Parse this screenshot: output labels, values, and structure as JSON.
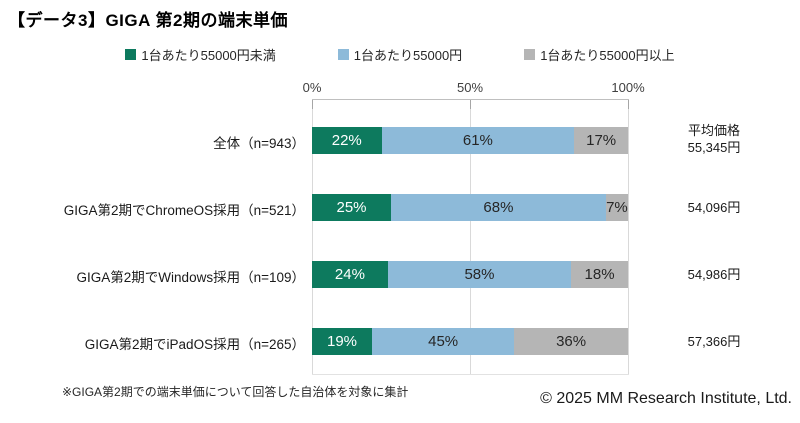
{
  "title": "【データ3】GIGA 第2期の端末単価",
  "note": "※GIGA第2期での端末単価について回答した自治体を対象に集計",
  "copyright": "© 2025 MM Research Institute, Ltd.",
  "chart_data": {
    "type": "bar",
    "stacked": true,
    "orientation": "horizontal",
    "title": "【データ3】GIGA 第2期の端末単価",
    "categories": [
      "全体（n=943）",
      "GIGA第2期でChromeOS採用（n=521）",
      "GIGA第2期でWindows採用（n=109）",
      "GIGA第2期でiPadOS採用（n=265）"
    ],
    "series": [
      {
        "name": "1台あたり55000円未満",
        "color": "#0d7a5e",
        "label_color": "#ffffff",
        "values": [
          22,
          25,
          24,
          19
        ]
      },
      {
        "name": "1台あたり55000円",
        "color": "#8dbad9",
        "label_color": "#262626",
        "values": [
          61,
          68,
          58,
          45
        ]
      },
      {
        "name": "1台あたり55000円以上",
        "color": "#b5b5b5",
        "label_color": "#262626",
        "values": [
          17,
          7,
          18,
          36
        ]
      }
    ],
    "x_ticks": [
      "0%",
      "50%",
      "100%"
    ],
    "xlim": [
      0,
      100
    ],
    "legend_position": "top",
    "grid": true,
    "value_suffix": "%",
    "avg_price_header": "平均価格",
    "avg_prices": [
      "55,345円",
      "54,096円",
      "54,986円",
      "57,366円"
    ]
  }
}
